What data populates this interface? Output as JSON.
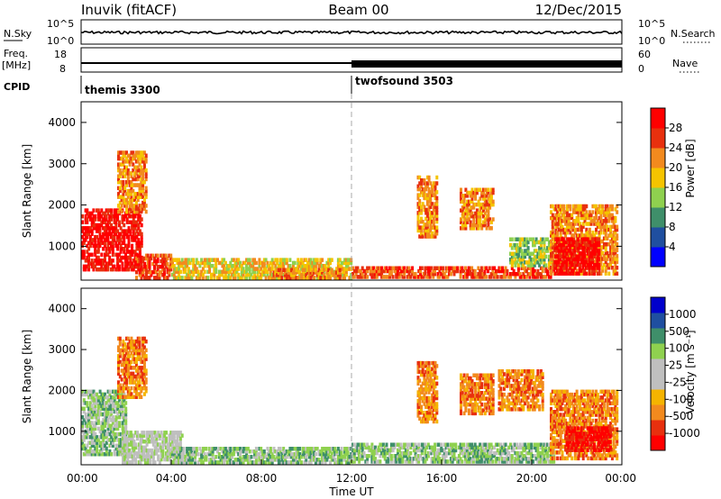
{
  "header": {
    "station": "Inuvik (fitACF)",
    "beam": "Beam 00",
    "date": "12/Dec/2015"
  },
  "top_panels": {
    "nsky_label": "N.Sky",
    "nsearch_label": "N.Search",
    "nsky_ticks": [
      "10^5",
      "10^0"
    ],
    "nsky_right_ticks": [
      "10^5",
      "10^0"
    ],
    "freq_label": "Freq.",
    "freq_unit": "[MHz]",
    "freq_ticks": [
      "18",
      "8"
    ],
    "nave_label": "Nave",
    "nave_ticks": [
      "60",
      "0"
    ],
    "cpid_label": "CPID",
    "cpid_programs": [
      "themis 3300",
      "twofsound 3503"
    ]
  },
  "chart_data": [
    {
      "type": "heatmap",
      "name": "power-panel",
      "ylabel": "Slant Range [km]",
      "ylim": [
        180,
        4500
      ],
      "yticks": [
        1000,
        2000,
        3000,
        4000
      ],
      "xlim": [
        0,
        24
      ],
      "colorbar": {
        "label": "Power [dB]",
        "ticks": [
          "28",
          "24",
          "20",
          "16",
          "12",
          "8",
          "4"
        ],
        "colors": [
          "#0000ff",
          "#1f4fa0",
          "#3f8f6a",
          "#8fd14f",
          "#f5c400",
          "#f28a1e",
          "#e8300e",
          "#ff0000"
        ]
      },
      "regions": [
        {
          "t0": 0.0,
          "t1": 2.7,
          "r0": 400,
          "r1": 1900,
          "level": 7
        },
        {
          "t0": 1.6,
          "t1": 2.9,
          "r0": 1800,
          "r1": 3300,
          "level": 5
        },
        {
          "t0": 2.4,
          "t1": 4.0,
          "r0": 200,
          "r1": 800,
          "level": 6
        },
        {
          "t0": 4.0,
          "t1": 12.0,
          "r0": 200,
          "r1": 700,
          "level": 4
        },
        {
          "t0": 8.5,
          "t1": 11.5,
          "r0": 200,
          "r1": 450,
          "level": 5
        },
        {
          "t0": 12.0,
          "t1": 21.0,
          "r0": 220,
          "r1": 500,
          "level": 6
        },
        {
          "t0": 14.9,
          "t1": 15.8,
          "r0": 1200,
          "r1": 2700,
          "level": 5
        },
        {
          "t0": 16.8,
          "t1": 18.3,
          "r0": 1400,
          "r1": 2400,
          "level": 5
        },
        {
          "t0": 19.0,
          "t1": 21.0,
          "r0": 500,
          "r1": 1200,
          "level": 3
        },
        {
          "t0": 20.8,
          "t1": 23.8,
          "r0": 300,
          "r1": 2000,
          "level": 5
        },
        {
          "t0": 21.0,
          "t1": 23.0,
          "r0": 300,
          "r1": 1200,
          "level": 7
        }
      ]
    },
    {
      "type": "heatmap",
      "name": "velocity-panel",
      "ylabel": "Slant Range [km]",
      "ylim": [
        180,
        4500
      ],
      "yticks": [
        1000,
        2000,
        3000,
        4000
      ],
      "xlim": [
        0,
        24
      ],
      "xlabel": "Time UT",
      "xticks": [
        "00:00",
        "04:00",
        "08:00",
        "12:00",
        "16:00",
        "20:00",
        "00:00"
      ],
      "colorbar": {
        "label": "Velocity [m s⁻¹]",
        "ticks": [
          "1000",
          "500",
          "100",
          "25",
          "-25",
          "-100",
          "-500",
          "-1000"
        ],
        "colors": [
          "#ff0000",
          "#e8300e",
          "#f28a1e",
          "#f5b400",
          "#bfbfbf",
          "#bfbfbf",
          "#8fd14f",
          "#3f8f6a",
          "#1f4fa0",
          "#0000cc"
        ]
      },
      "regions": [
        {
          "t0": 0.0,
          "t1": 2.0,
          "r0": 400,
          "r1": 2000,
          "level": 6
        },
        {
          "t0": 1.6,
          "t1": 2.9,
          "r0": 1800,
          "r1": 3300,
          "level": 2
        },
        {
          "t0": 1.8,
          "t1": 4.5,
          "r0": 200,
          "r1": 1000,
          "level": 5
        },
        {
          "t0": 4.0,
          "t1": 12.0,
          "r0": 200,
          "r1": 600,
          "level": 6
        },
        {
          "t0": 12.0,
          "t1": 21.0,
          "r0": 220,
          "r1": 700,
          "level": 6
        },
        {
          "t0": 14.9,
          "t1": 15.8,
          "r0": 1200,
          "r1": 2700,
          "level": 2
        },
        {
          "t0": 16.8,
          "t1": 18.3,
          "r0": 1400,
          "r1": 2400,
          "level": 2
        },
        {
          "t0": 18.5,
          "t1": 20.5,
          "r0": 1500,
          "r1": 2500,
          "level": 2
        },
        {
          "t0": 20.8,
          "t1": 23.8,
          "r0": 300,
          "r1": 2000,
          "level": 2
        },
        {
          "t0": 21.5,
          "t1": 23.5,
          "r0": 500,
          "r1": 1100,
          "level": 0
        }
      ]
    }
  ]
}
